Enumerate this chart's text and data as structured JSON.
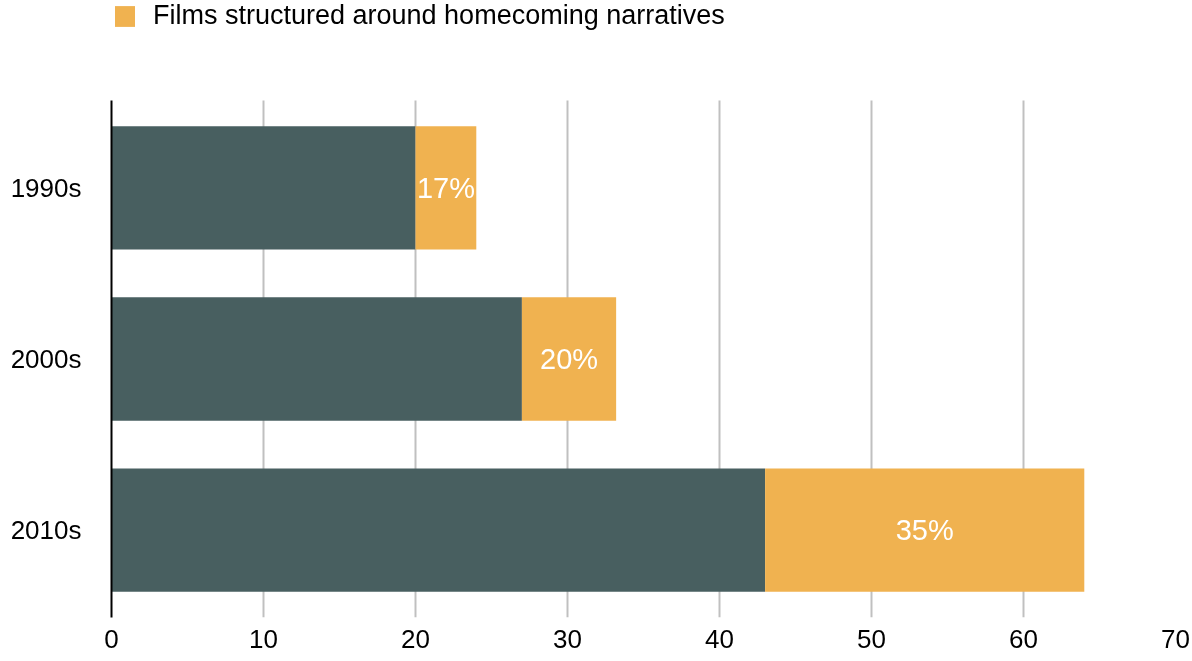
{
  "chart_data": {
    "type": "bar",
    "orientation": "horizontal",
    "stacked": true,
    "categories": [
      "1990s",
      "2000s",
      "2010s"
    ],
    "series": [
      {
        "color": "#485f60",
        "values": [
          20,
          27,
          43
        ]
      },
      {
        "name": "Films structured around homecoming narratives",
        "color": "#f0b250",
        "values": [
          4,
          6.2,
          21
        ]
      }
    ],
    "annotations": [
      "17%",
      "20%",
      "35%"
    ],
    "xlim": [
      0,
      70
    ],
    "xticks": [
      0,
      10,
      20,
      30,
      40,
      50,
      60,
      70
    ],
    "grid": "x",
    "legend": "top left"
  }
}
